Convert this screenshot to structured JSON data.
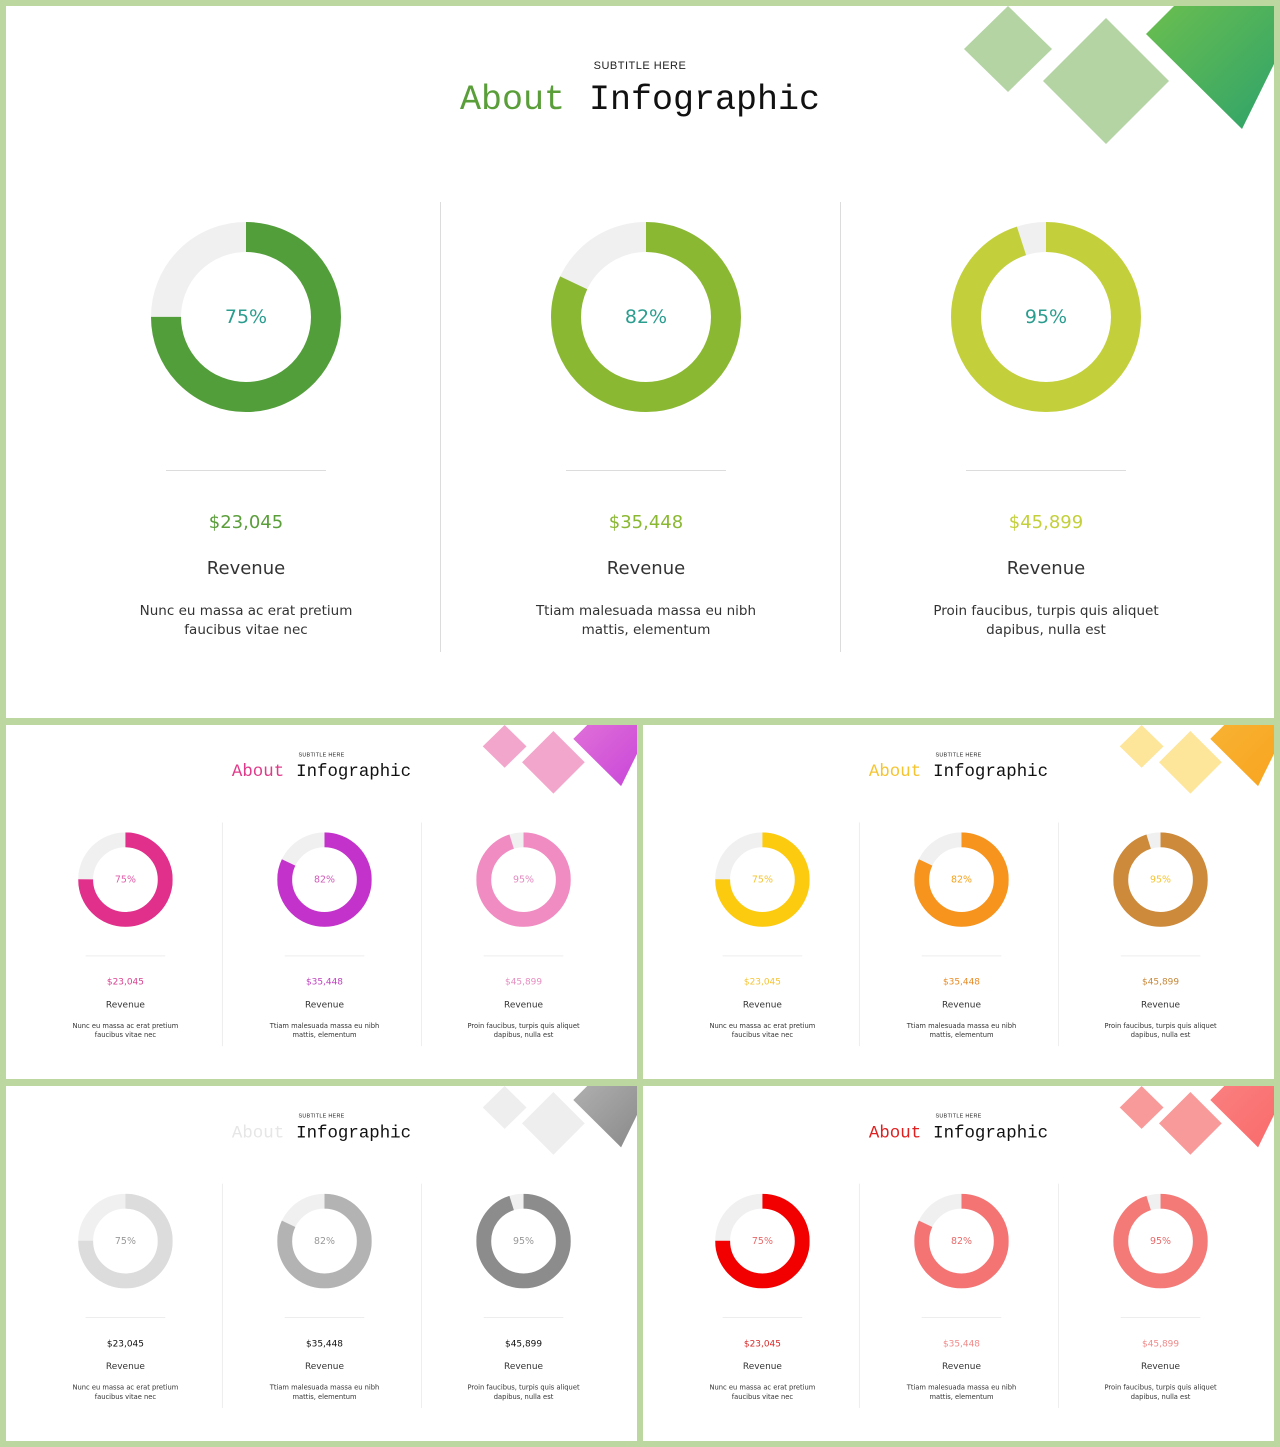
{
  "slides": [
    {
      "id": "green",
      "subtitle": "SUBTITLE HERE",
      "title_word1": "About",
      "title_word2": "Infographic",
      "accent": "#5a9e3a",
      "title_color2": "#111111",
      "amount_color": null,
      "deco": [
        "#b4d4a4",
        "#b4d4a4",
        "#6cbf4e",
        "#2fa36a"
      ],
      "items": [
        {
          "percent": 75,
          "percent_label": "75%",
          "color": "#529e3a",
          "label_color": "#2a9d8f",
          "amount": "$23,045",
          "amount_color": "#5a9e3a",
          "label": "Revenue",
          "desc": "Nunc eu massa ac erat pretium faucibus vitae nec"
        },
        {
          "percent": 82,
          "percent_label": "82%",
          "color": "#8bb833",
          "label_color": "#2a9d8f",
          "amount": "$35,448",
          "amount_color": "#8bb833",
          "label": "Revenue",
          "desc": "Ttiam malesuada massa eu nibh mattis, elementum"
        },
        {
          "percent": 95,
          "percent_label": "95%",
          "color": "#c3d03b",
          "label_color": "#2a9d8f",
          "amount": "$45,899",
          "amount_color": "#c3d03b",
          "label": "Revenue",
          "desc": "Proin faucibus, turpis quis aliquet dapibus, nulla est"
        }
      ]
    },
    {
      "id": "pink",
      "subtitle": "SUBTITLE HERE",
      "title_word1": "About",
      "title_word2": "Infographic",
      "accent": "#e03b8b",
      "deco": [
        "#f3a6cc",
        "#f3a6cc",
        "#e070d8",
        "#c947d9"
      ],
      "items": [
        {
          "percent": 75,
          "percent_label": "75%",
          "color": "#e0308b",
          "label_color": "#e05aa8",
          "amount": "$23,045",
          "amount_color": "#d9418f",
          "label": "Revenue",
          "desc": "Nunc eu massa ac erat pretium faucibus vitae nec"
        },
        {
          "percent": 82,
          "percent_label": "82%",
          "color": "#c333cb",
          "label_color": "#d05ab8",
          "amount": "$35,448",
          "amount_color": "#c040c0",
          "label": "Revenue",
          "desc": "Ttiam malesuada massa eu nibh mattis, elementum"
        },
        {
          "percent": 95,
          "percent_label": "95%",
          "color": "#f08cc2",
          "label_color": "#e38ac0",
          "amount": "$45,899",
          "amount_color": "#e68ec0",
          "label": "Revenue",
          "desc": "Proin faucibus, turpis quis aliquet dapibus, nulla est"
        }
      ]
    },
    {
      "id": "yellow",
      "subtitle": "SUBTITLE HERE",
      "title_word1": "About",
      "title_word2": "Infographic",
      "accent": "#f5c431",
      "deco": [
        "#fde59a",
        "#fde59a",
        "#f9b233",
        "#f7a51f"
      ],
      "items": [
        {
          "percent": 75,
          "percent_label": "75%",
          "color": "#fccb0f",
          "label_color": "#f5c431",
          "amount": "$23,045",
          "amount_color": "#f5c431",
          "label": "Revenue",
          "desc": "Nunc eu massa ac erat pretium faucibus vitae nec"
        },
        {
          "percent": 82,
          "percent_label": "82%",
          "color": "#f7941d",
          "label_color": "#f5a21d",
          "amount": "$35,448",
          "amount_color": "#e88a24",
          "label": "Revenue",
          "desc": "Ttiam malesuada massa eu nibh mattis, elementum"
        },
        {
          "percent": 95,
          "percent_label": "95%",
          "color": "#cd8a3b",
          "label_color": "#f5c431",
          "amount": "$45,899",
          "amount_color": "#c8883a",
          "label": "Revenue",
          "desc": "Proin faucibus, turpis quis aliquet dapibus, nulla est"
        }
      ]
    },
    {
      "id": "grey",
      "subtitle": "SUBTITLE HERE",
      "title_word1": "About",
      "title_word2": "Infographic",
      "accent": "#e6e6e6",
      "deco": [
        "#eeeeee",
        "#eeeeee",
        "#b0b0b0",
        "#8a8a8a"
      ],
      "items": [
        {
          "percent": 75,
          "percent_label": "75%",
          "color": "#dcdcdc",
          "label_color": "#999999",
          "amount": "$23,045",
          "amount_color": "#111111",
          "label": "Revenue",
          "desc": "Nunc eu massa ac erat pretium faucibus vitae nec"
        },
        {
          "percent": 82,
          "percent_label": "82%",
          "color": "#b3b3b3",
          "label_color": "#999999",
          "amount": "$35,448",
          "amount_color": "#111111",
          "label": "Revenue",
          "desc": "Ttiam malesuada massa eu nibh mattis, elementum"
        },
        {
          "percent": 95,
          "percent_label": "95%",
          "color": "#8c8c8c",
          "label_color": "#999999",
          "amount": "$45,899",
          "amount_color": "#111111",
          "label": "Revenue",
          "desc": "Proin faucibus, turpis quis aliquet dapibus, nulla est"
        }
      ]
    },
    {
      "id": "red",
      "subtitle": "SUBTITLE HERE",
      "title_word1": "About",
      "title_word2": "Infographic",
      "accent": "#e02020",
      "deco": [
        "#f99a9a",
        "#f99a9a",
        "#fb8080",
        "#f96b6b"
      ],
      "items": [
        {
          "percent": 75,
          "percent_label": "75%",
          "color": "#f20000",
          "label_color": "#e86a6a",
          "amount": "$23,045",
          "amount_color": "#d92a2a",
          "label": "Revenue",
          "desc": "Nunc eu massa ac erat pretium faucibus vitae nec"
        },
        {
          "percent": 82,
          "percent_label": "82%",
          "color": "#f47474",
          "label_color": "#e86a6a",
          "amount": "$35,448",
          "amount_color": "#f08a8a",
          "label": "Revenue",
          "desc": "Ttiam malesuada massa eu nibh mattis, elementum"
        },
        {
          "percent": 95,
          "percent_label": "95%",
          "color": "#f47a78",
          "label_color": "#e86a6a",
          "amount": "$45,899",
          "amount_color": "#f08a8a",
          "label": "Revenue",
          "desc": "Proin faucibus, turpis quis aliquet dapibus, nulla est"
        }
      ]
    }
  ]
}
